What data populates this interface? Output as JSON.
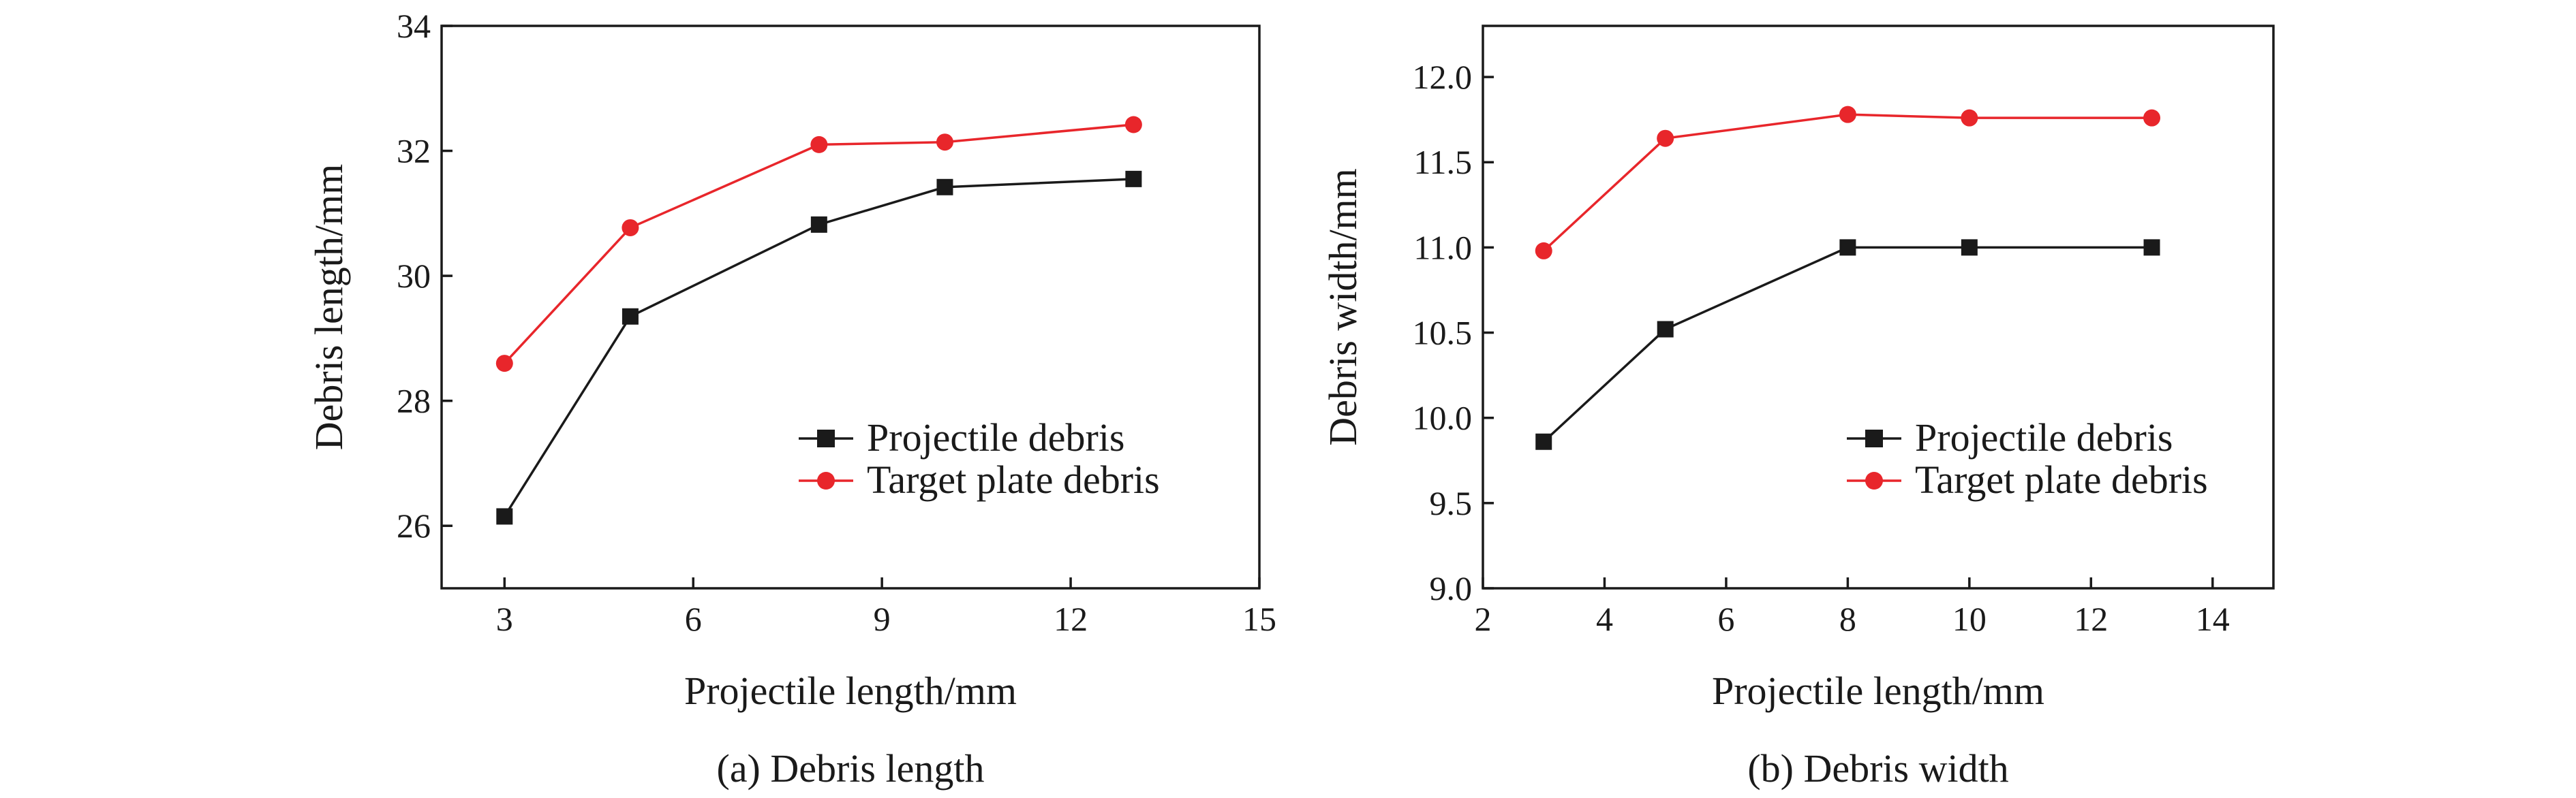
{
  "chart_data": [
    {
      "type": "line",
      "caption": "(a) Debris length",
      "xlabel": "Projectile length/mm",
      "ylabel": "Debris length/mm",
      "xlim": [
        2,
        15
      ],
      "ylim": [
        25,
        34
      ],
      "xticks": [
        3,
        6,
        9,
        12,
        15
      ],
      "yticks": [
        26,
        28,
        30,
        32,
        34
      ],
      "x": [
        3,
        5,
        8,
        10,
        13
      ],
      "series": [
        {
          "name": "Projectile debris",
          "marker": "square",
          "color": "#1a1a1a",
          "values": [
            26.15,
            29.35,
            30.82,
            31.42,
            31.55
          ]
        },
        {
          "name": "Target plate debris",
          "marker": "circle",
          "color": "#e8262b",
          "values": [
            28.6,
            30.77,
            32.1,
            32.14,
            32.42
          ]
        }
      ],
      "legend_position": "lower-right"
    },
    {
      "type": "line",
      "caption": "(b) Debris width",
      "xlabel": "Projectile length/mm",
      "ylabel": "Debris width/mm",
      "xlim": [
        2,
        15
      ],
      "ylim": [
        9.0,
        12.3
      ],
      "xticks": [
        2,
        4,
        6,
        8,
        10,
        12,
        14
      ],
      "yticks": [
        "9.0",
        "9.5",
        "10.0",
        "10.5",
        "11.0",
        "11.5",
        "12.0"
      ],
      "x": [
        3,
        5,
        8,
        10,
        13
      ],
      "series": [
        {
          "name": "Projectile debris",
          "marker": "square",
          "color": "#1a1a1a",
          "values": [
            9.86,
            10.52,
            11.0,
            11.0,
            11.0
          ]
        },
        {
          "name": "Target plate debris",
          "marker": "circle",
          "color": "#e8262b",
          "values": [
            10.98,
            11.64,
            11.78,
            11.76,
            11.76
          ]
        }
      ],
      "legend_position": "lower-right"
    }
  ]
}
